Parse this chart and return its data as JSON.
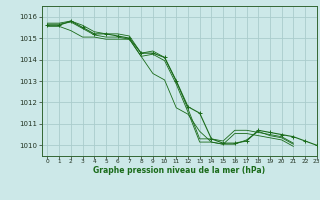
{
  "title": "Graphe pression niveau de la mer (hPa)",
  "bg_color": "#cce8e8",
  "grid_color": "#aacccc",
  "line_color": "#1a6b1a",
  "marker_color": "#1a6b1a",
  "xlim": [
    -0.5,
    23
  ],
  "ylim": [
    1009.5,
    1016.5
  ],
  "yticks": [
    1010,
    1011,
    1012,
    1013,
    1014,
    1015,
    1016
  ],
  "xticks": [
    0,
    1,
    2,
    3,
    4,
    5,
    6,
    7,
    8,
    9,
    10,
    11,
    12,
    13,
    14,
    15,
    16,
    17,
    18,
    19,
    20,
    21,
    22,
    23
  ],
  "series": [
    {
      "x": [
        0,
        1,
        2,
        3,
        4,
        5,
        6,
        7,
        8,
        9,
        10,
        11,
        12,
        13,
        14,
        15,
        16,
        17,
        18,
        19,
        20,
        21
      ],
      "y": [
        1015.7,
        1015.7,
        1015.8,
        1015.6,
        1015.3,
        1015.2,
        1015.2,
        1015.1,
        1014.3,
        1014.4,
        1014.1,
        1013.0,
        1011.7,
        1010.3,
        1010.3,
        1010.2,
        1010.7,
        1010.7,
        1010.6,
        1010.5,
        1010.4,
        1010.1
      ],
      "has_markers": false
    },
    {
      "x": [
        0,
        1,
        2,
        3,
        4,
        5,
        6,
        7,
        8,
        9,
        10,
        11,
        12,
        13,
        14,
        15,
        16,
        17,
        18,
        19,
        20,
        21
      ],
      "y": [
        1015.65,
        1015.65,
        1015.75,
        1015.45,
        1015.15,
        1015.05,
        1015.05,
        1014.95,
        1014.15,
        1014.25,
        1013.95,
        1012.85,
        1011.55,
        1010.15,
        1010.15,
        1010.05,
        1010.55,
        1010.55,
        1010.45,
        1010.35,
        1010.25,
        1009.95
      ],
      "has_markers": false
    },
    {
      "x": [
        0,
        1,
        2,
        3,
        4,
        5,
        6,
        7,
        8,
        9,
        10,
        11,
        12,
        13,
        14,
        15,
        16,
        17,
        18,
        19,
        20,
        21
      ],
      "y": [
        1015.55,
        1015.55,
        1015.35,
        1015.05,
        1015.05,
        1014.95,
        1014.95,
        1014.95,
        1014.15,
        1013.35,
        1013.05,
        1011.75,
        1011.45,
        1010.65,
        1010.15,
        1010.05,
        1010.05,
        1010.25,
        1010.65,
        1010.45,
        1010.35,
        1010.05
      ],
      "has_markers": false
    },
    {
      "x": [
        0,
        1,
        2,
        3,
        4,
        5,
        6,
        7,
        8,
        9,
        10,
        11,
        12,
        13,
        14,
        15,
        16,
        17,
        18,
        19,
        20,
        21,
        22,
        23
      ],
      "y": [
        1015.6,
        1015.6,
        1015.8,
        1015.5,
        1015.2,
        1015.2,
        1015.1,
        1015.0,
        1014.3,
        1014.3,
        1014.1,
        1013.0,
        1011.8,
        1011.5,
        1010.3,
        1010.1,
        1010.1,
        1010.2,
        1010.7,
        1010.6,
        1010.5,
        1010.4,
        1010.2,
        1010.0
      ],
      "has_markers": true
    }
  ]
}
